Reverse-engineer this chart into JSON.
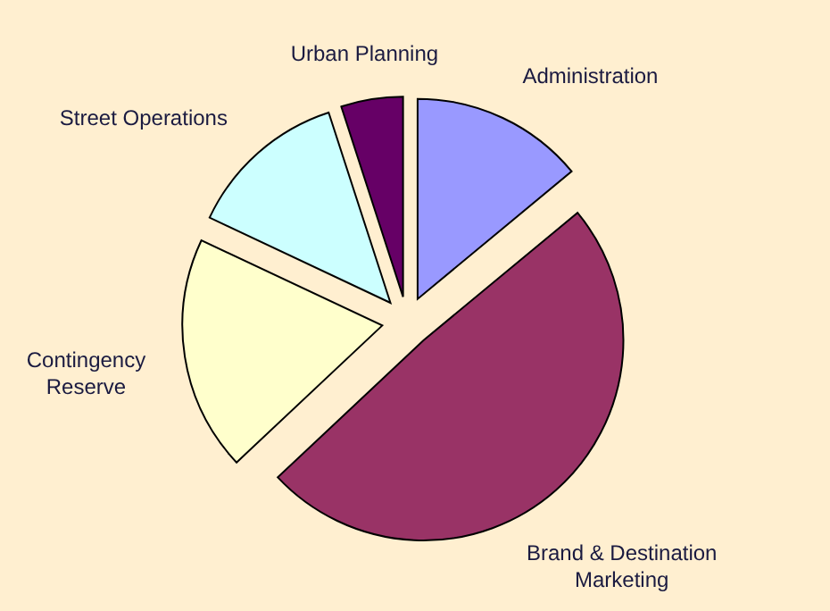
{
  "chart_data": {
    "type": "pie",
    "categories": [
      "Administration",
      "Brand & Destination Marketing",
      "Contingency Reserve",
      "Street Operations",
      "Urban Planning"
    ],
    "values": [
      14,
      49,
      19,
      13,
      5
    ],
    "colors": [
      "#9999ff",
      "#993366",
      "#ffffcc",
      "#ccffff",
      "#660066"
    ]
  }
}
